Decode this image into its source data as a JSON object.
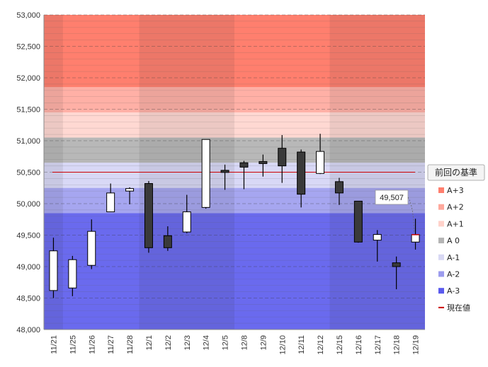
{
  "chart_data": {
    "type": "candlestick",
    "ylim": [
      48000,
      53000
    ],
    "y_ticks": [
      "48,000",
      "48,500",
      "49,000",
      "49,500",
      "50,000",
      "50,500",
      "51,000",
      "51,500",
      "52,000",
      "52,500",
      "53,000"
    ],
    "y_tick_values": [
      48000,
      48500,
      49000,
      49500,
      50000,
      50500,
      51000,
      51500,
      52000,
      52500,
      53000
    ],
    "categories": [
      "11/21",
      "11/25",
      "11/26",
      "11/27",
      "11/28",
      "12/1",
      "12/2",
      "12/3",
      "12/4",
      "12/5",
      "12/8",
      "12/9",
      "12/10",
      "12/11",
      "12/12",
      "12/15",
      "12/16",
      "12/17",
      "12/18",
      "12/19"
    ],
    "candles": [
      {
        "open": 48620,
        "high": 49460,
        "low": 48500,
        "close": 49250
      },
      {
        "open": 48660,
        "high": 49170,
        "low": 48530,
        "close": 49110
      },
      {
        "open": 49020,
        "high": 49750,
        "low": 48960,
        "close": 49560
      },
      {
        "open": 49870,
        "high": 50320,
        "low": 49870,
        "close": 50170
      },
      {
        "open": 50200,
        "high": 50260,
        "low": 49990,
        "close": 50240
      },
      {
        "open": 50320,
        "high": 50360,
        "low": 49220,
        "close": 49300
      },
      {
        "open": 49490,
        "high": 49640,
        "low": 49250,
        "close": 49300
      },
      {
        "open": 49550,
        "high": 50140,
        "low": 49530,
        "close": 49870
      },
      {
        "open": 49940,
        "high": 51020,
        "low": 49920,
        "close": 51020
      },
      {
        "open": 50530,
        "high": 50620,
        "low": 50220,
        "close": 50510
      },
      {
        "open": 50650,
        "high": 50680,
        "low": 50230,
        "close": 50580
      },
      {
        "open": 50670,
        "high": 50780,
        "low": 50430,
        "close": 50650
      },
      {
        "open": 50880,
        "high": 51090,
        "low": 50330,
        "close": 50600
      },
      {
        "open": 50820,
        "high": 50860,
        "low": 49940,
        "close": 50150
      },
      {
        "open": 50480,
        "high": 51110,
        "low": 50470,
        "close": 50830
      },
      {
        "open": 50350,
        "high": 50410,
        "low": 49980,
        "close": 50170
      },
      {
        "open": 50040,
        "high": 50040,
        "low": 49380,
        "close": 49390
      },
      {
        "open": 49420,
        "high": 49580,
        "low": 49080,
        "close": 49510
      },
      {
        "open": 49060,
        "high": 49160,
        "low": 48640,
        "close": 49000
      },
      {
        "open": 49390,
        "high": 49760,
        "low": 49270,
        "close": 49507
      }
    ],
    "reference_line": {
      "value": 50500,
      "color": "#cc0000"
    },
    "current_value": 49507,
    "current_value_label": "49,507",
    "bands": [
      {
        "name": "A+3",
        "from": 51850,
        "to": 53000,
        "color": "#ff7f6e"
      },
      {
        "name": "A+2",
        "from": 51450,
        "to": 51850,
        "color": "#ffb0a6"
      },
      {
        "name": "A+1",
        "from": 51050,
        "to": 51450,
        "color": "#ffd8d2"
      },
      {
        "name": "A 0",
        "from": 50650,
        "to": 51050,
        "color": "#b8b8b8"
      },
      {
        "name": "A-1",
        "from": 50250,
        "to": 50650,
        "color": "#d8d8f6"
      },
      {
        "name": "A-2",
        "from": 49850,
        "to": 50250,
        "color": "#a6a6f0"
      },
      {
        "name": "A-3",
        "from": 48000,
        "to": 49850,
        "color": "#6a6aee"
      }
    ],
    "legend": {
      "title": "前回の基準",
      "position": "right",
      "items": [
        {
          "label": "A+3",
          "color": "#ff7f6e",
          "kind": "box"
        },
        {
          "label": "A+2",
          "color": "#ffa89c",
          "kind": "box"
        },
        {
          "label": "A+1",
          "color": "#ffd2ca",
          "kind": "box"
        },
        {
          "label": "A 0",
          "color": "#b4b4b4",
          "kind": "box"
        },
        {
          "label": "A-1",
          "color": "#d8d8f4",
          "kind": "box"
        },
        {
          "label": "A-2",
          "color": "#9c9cee",
          "kind": "box"
        },
        {
          "label": "A-3",
          "color": "#5a5aee",
          "kind": "box"
        },
        {
          "label": "現在値",
          "color": "#cc0000",
          "kind": "line"
        }
      ]
    },
    "grid": true
  }
}
